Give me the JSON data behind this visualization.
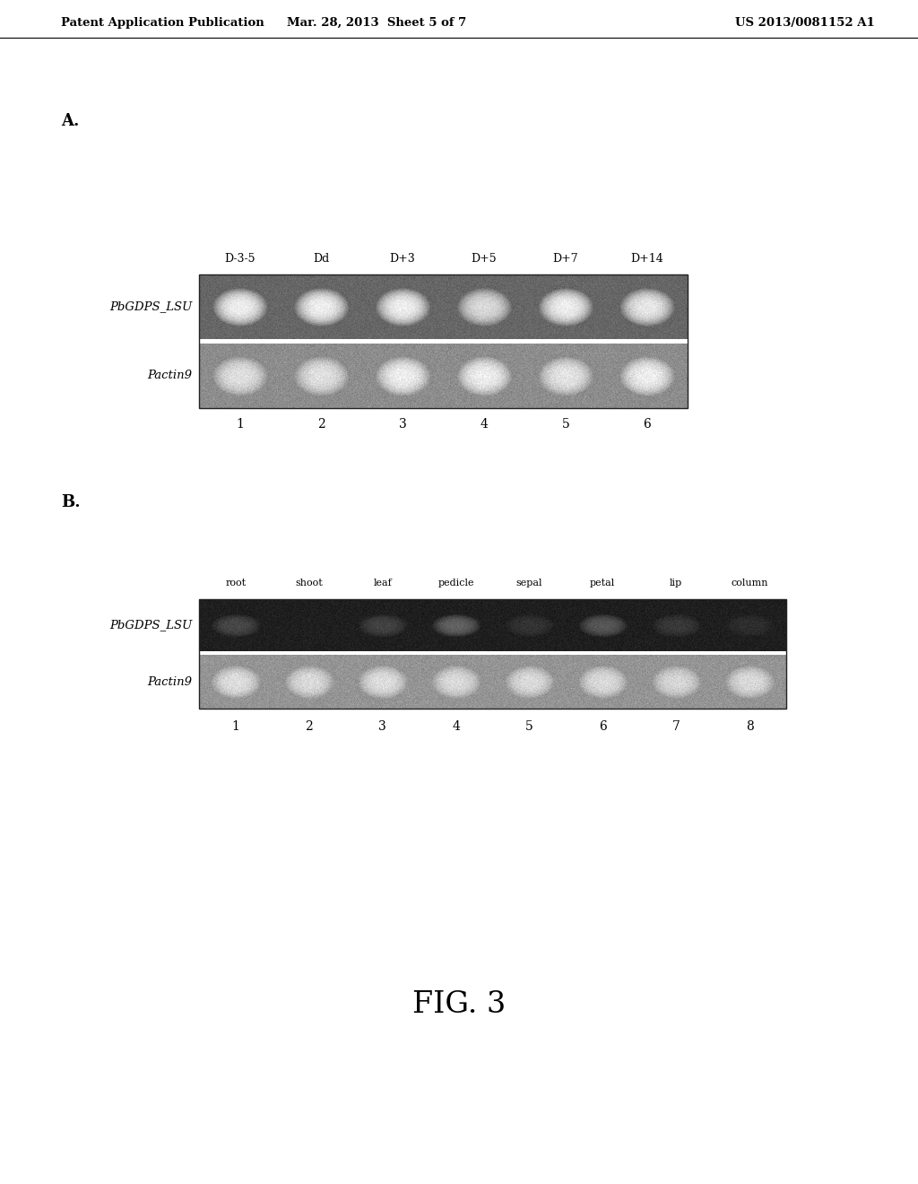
{
  "header_left": "Patent Application Publication",
  "header_mid": "Mar. 28, 2013  Sheet 5 of 7",
  "header_right": "US 2013/0081152 A1",
  "panel_a_label": "A.",
  "panel_b_label": "B.",
  "panel_a_top_labels": [
    "D-3-5",
    "Dd",
    "D+3",
    "D+5",
    "D+7",
    "D+14"
  ],
  "panel_a_bottom_labels": [
    "1",
    "2",
    "3",
    "4",
    "5",
    "6"
  ],
  "panel_a_row_labels": [
    "PbGDPS_LSU",
    "Pactin9"
  ],
  "panel_b_top_labels": [
    "root",
    "shoot",
    "leaf",
    "pedicle",
    "sepal",
    "petal",
    "lip",
    "column"
  ],
  "panel_b_bottom_labels": [
    "1",
    "2",
    "3",
    "4",
    "5",
    "6",
    "7",
    "8"
  ],
  "panel_b_row_labels": [
    "PbGDPS_LSU",
    "Pactin9"
  ],
  "fig_label": "FIG. 3",
  "panel_a_band_intensities_row1": [
    1.0,
    1.0,
    1.0,
    0.85,
    1.0,
    0.95
  ],
  "panel_a_band_intensities_row2": [
    0.85,
    0.85,
    1.0,
    1.0,
    0.9,
    1.0
  ],
  "panel_b_band_intensities_row1": [
    0.4,
    0.0,
    0.35,
    0.65,
    0.2,
    0.55,
    0.25,
    0.15
  ],
  "panel_b_band_intensities_row2": [
    0.9,
    0.85,
    0.9,
    0.85,
    0.85,
    0.85,
    0.8,
    0.85
  ]
}
